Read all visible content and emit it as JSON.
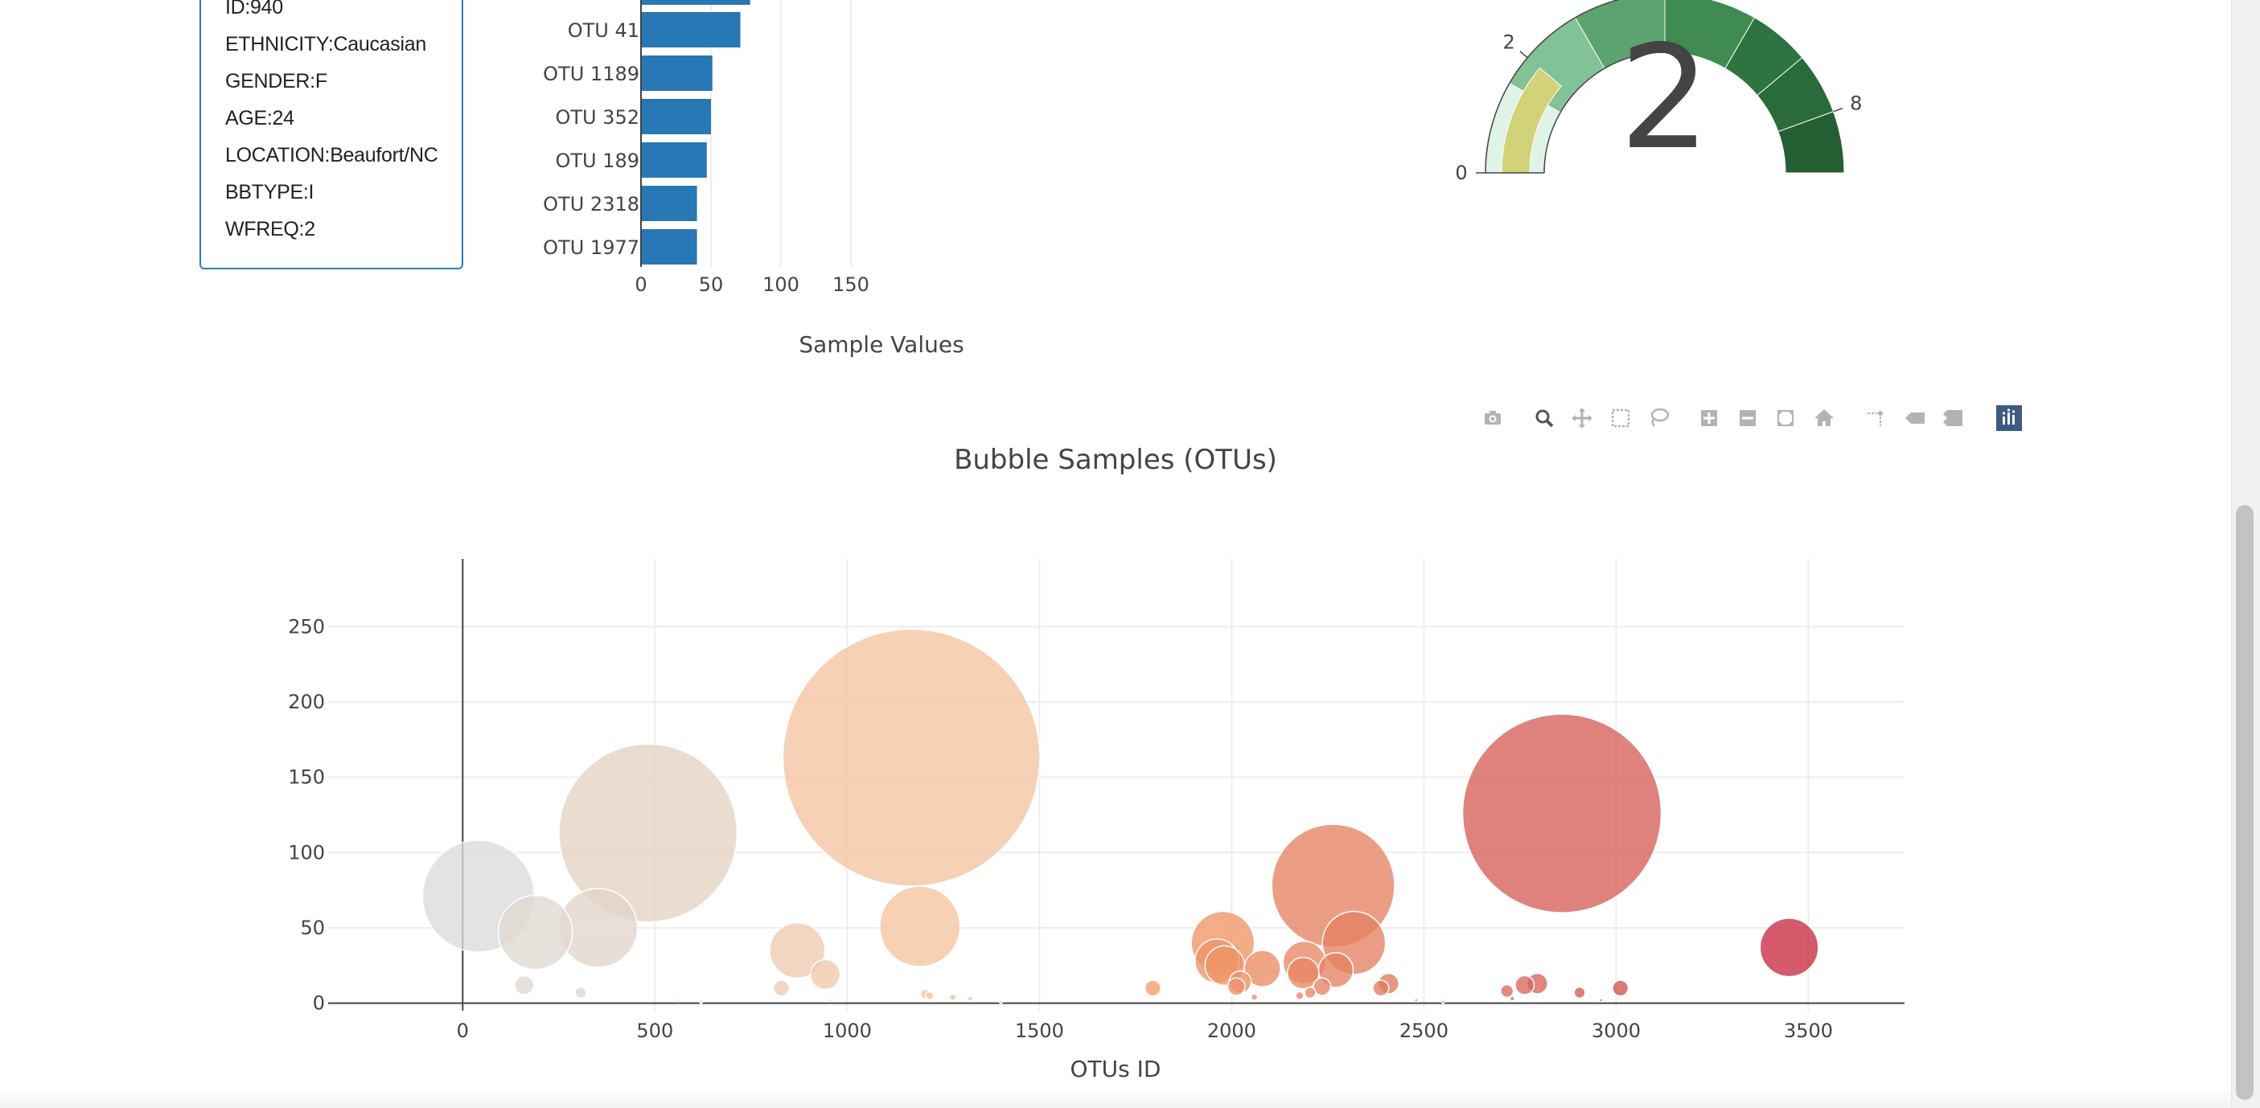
{
  "demographics": [
    {
      "label": "ID:",
      "value": "940"
    },
    {
      "label": "ETHNICITY:",
      "value": "Caucasian"
    },
    {
      "label": "GENDER:",
      "value": "F"
    },
    {
      "label": "AGE:",
      "value": "24"
    },
    {
      "label": "LOCATION:",
      "value": "Beaufort/NC"
    },
    {
      "label": "BBTYPE:",
      "value": "I"
    },
    {
      "label": "WFREQ:",
      "value": "2"
    }
  ],
  "modebar": {
    "buttons": [
      "camera-icon",
      "zoom-icon",
      "pan-icon",
      "box-select-icon",
      "lasso-select-icon",
      "zoom-in-icon",
      "zoom-out-icon",
      "autoscale-icon",
      "reset-axes-icon",
      "spike-lines-icon",
      "hover-closest-icon",
      "hover-compare-icon",
      "plotly-logo-icon"
    ]
  },
  "colors": {
    "bar": "#2878b5",
    "gauge_needle_band": "#d2d27a",
    "gauge_bands": [
      "#dff3e6",
      "#83c196",
      "#5ba46f",
      "#3f8b52",
      "#2e7440",
      "#2a6b3b",
      "#235f33"
    ],
    "gauge_outline": "#444444",
    "modebar_inactive": "#b3b3b3",
    "modebar_active": "#555555",
    "modebar_logo": "#3d5a84"
  },
  "chart_data": [
    {
      "type": "bar",
      "orientation": "horizontal",
      "categories": [
        "OTU 41",
        "OTU 1189",
        "OTU 352",
        "OTU 189",
        "OTU 2318",
        "OTU 1977"
      ],
      "values": [
        71,
        51,
        50,
        47,
        40,
        40
      ],
      "partial_top_bar_value": 78,
      "xlabel": "Sample Values",
      "xticks": [
        0,
        50,
        100,
        150
      ],
      "xlim": [
        0,
        165
      ],
      "grid": true
    },
    {
      "type": "gauge",
      "value": 2,
      "value_label": "2",
      "range": [
        0,
        9
      ],
      "ticks": [
        {
          "value": 0,
          "label": "0"
        },
        {
          "value": 2,
          "label": "2"
        },
        {
          "value": 8,
          "label": "8"
        }
      ]
    },
    {
      "type": "scatter",
      "mode": "bubble",
      "title": "Bubble Samples (OTUs)",
      "xlabel": "OTUs ID",
      "xticks": [
        0,
        500,
        1000,
        1500,
        2000,
        2500,
        3000,
        3500
      ],
      "yticks": [
        0,
        50,
        100,
        150,
        200,
        250
      ],
      "xlim": [
        -350,
        3750
      ],
      "ylim": [
        -5,
        295
      ],
      "grid": true,
      "colorscale": "Reds",
      "points": [
        {
          "x": 41,
          "y": 71
        },
        {
          "x": 189,
          "y": 47
        },
        {
          "x": 352,
          "y": 50
        },
        {
          "x": 482,
          "y": 113
        },
        {
          "x": 1167,
          "y": 163
        },
        {
          "x": 1189,
          "y": 51
        },
        {
          "x": 2264,
          "y": 78
        },
        {
          "x": 2859,
          "y": 126
        },
        {
          "x": 3450,
          "y": 37
        },
        {
          "x": 870,
          "y": 35
        },
        {
          "x": 1977,
          "y": 40
        },
        {
          "x": 2318,
          "y": 40
        },
        {
          "x": 1962,
          "y": 28
        },
        {
          "x": 1982,
          "y": 25
        },
        {
          "x": 2189,
          "y": 27
        },
        {
          "x": 2080,
          "y": 23
        },
        {
          "x": 2271,
          "y": 22
        },
        {
          "x": 943,
          "y": 19
        },
        {
          "x": 2186,
          "y": 20
        },
        {
          "x": 160,
          "y": 12
        },
        {
          "x": 2022,
          "y": 14
        },
        {
          "x": 2795,
          "y": 13
        },
        {
          "x": 2408,
          "y": 13
        },
        {
          "x": 2762,
          "y": 12
        },
        {
          "x": 2388,
          "y": 10
        },
        {
          "x": 1795,
          "y": 10
        },
        {
          "x": 2235,
          "y": 11
        },
        {
          "x": 3011,
          "y": 10
        },
        {
          "x": 829,
          "y": 10
        },
        {
          "x": 2012,
          "y": 11
        },
        {
          "x": 2716,
          "y": 8
        },
        {
          "x": 2905,
          "y": 7
        },
        {
          "x": 307,
          "y": 7
        },
        {
          "x": 2204,
          "y": 7
        },
        {
          "x": 1203,
          "y": 6
        },
        {
          "x": 2177,
          "y": 5
        },
        {
          "x": 1215,
          "y": 5
        },
        {
          "x": 1275,
          "y": 4
        },
        {
          "x": 2059,
          "y": 4
        },
        {
          "x": 2730,
          "y": 3
        },
        {
          "x": 1320,
          "y": 3
        },
        {
          "x": 560,
          "y": 2
        },
        {
          "x": 960,
          "y": 2
        },
        {
          "x": 2960,
          "y": 2
        },
        {
          "x": 2480,
          "y": 2
        },
        {
          "x": 2550,
          "y": 1
        },
        {
          "x": 1400,
          "y": 1
        },
        {
          "x": 620,
          "y": 1
        }
      ]
    }
  ]
}
